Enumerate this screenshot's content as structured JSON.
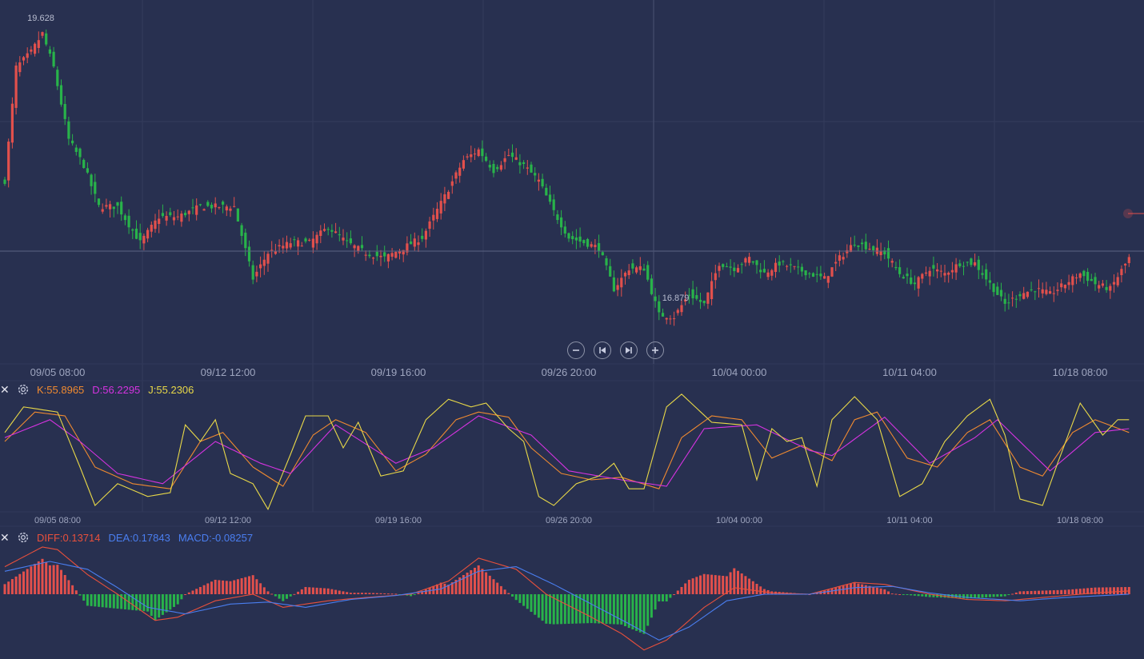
{
  "colors": {
    "background": "#283050",
    "grid": "#343c5c",
    "up": "#e2504c",
    "down": "#28b34a",
    "k": "#f08a30",
    "d": "#d533e0",
    "j": "#e8d848",
    "diff": "#e8503c",
    "dea": "#4a7ef0",
    "axis_text": "#9ea5bf"
  },
  "toolbar": {
    "zoom_out_icon": "minus-circle-icon",
    "prev_icon": "skip-back-icon",
    "next_icon": "skip-forward-icon",
    "zoom_in_icon": "plus-circle-icon"
  },
  "kdj_legend": {
    "close_icon": "close-icon",
    "settings_icon": "gear-icon",
    "k": "K:55.8965",
    "d": "D:56.2295",
    "j": "J:55.2306"
  },
  "macd_legend": {
    "close_icon": "close-icon",
    "settings_icon": "gear-icon",
    "diff": "DIFF:0.13714",
    "dea": "DEA:0.17843",
    "macd": "MACD:-0.08257"
  },
  "chart_data": [
    {
      "type": "candlestick",
      "name": "price",
      "x_labels": [
        "09/05 08:00",
        "09/12 12:00",
        "09/19 16:00",
        "09/26 20:00",
        "10/04 00:00",
        "10/11 04:00",
        "10/18 08:00"
      ],
      "max_label": "19.628",
      "min_label": "16.879",
      "ylim": [
        16.5,
        19.8
      ],
      "close_anchors": [
        [
          0,
          18.2
        ],
        [
          3,
          19.3
        ],
        [
          7,
          19.45
        ],
        [
          10,
          19.63
        ],
        [
          13,
          19.3
        ],
        [
          17,
          18.6
        ],
        [
          21,
          18.35
        ],
        [
          25,
          17.95
        ],
        [
          30,
          17.95
        ],
        [
          36,
          17.6
        ],
        [
          41,
          17.85
        ],
        [
          46,
          17.85
        ],
        [
          52,
          17.95
        ],
        [
          56,
          17.95
        ],
        [
          61,
          17.95
        ],
        [
          66,
          17.25
        ],
        [
          70,
          17.5
        ],
        [
          76,
          17.6
        ],
        [
          81,
          17.6
        ],
        [
          86,
          17.75
        ],
        [
          91,
          17.6
        ],
        [
          96,
          17.5
        ],
        [
          101,
          17.45
        ],
        [
          106,
          17.55
        ],
        [
          111,
          17.65
        ],
        [
          117,
          18.05
        ],
        [
          122,
          18.4
        ],
        [
          126,
          18.5
        ],
        [
          130,
          18.3
        ],
        [
          134,
          18.45
        ],
        [
          138,
          18.35
        ],
        [
          142,
          18.2
        ],
        [
          146,
          17.9
        ],
        [
          150,
          17.65
        ],
        [
          154,
          17.6
        ],
        [
          158,
          17.55
        ],
        [
          162,
          17.15
        ],
        [
          166,
          17.35
        ],
        [
          170,
          17.35
        ],
        [
          174,
          16.9
        ],
        [
          178,
          16.88
        ],
        [
          182,
          17.1
        ],
        [
          186,
          17.0
        ],
        [
          190,
          17.4
        ],
        [
          194,
          17.35
        ],
        [
          198,
          17.45
        ],
        [
          202,
          17.3
        ],
        [
          206,
          17.4
        ],
        [
          210,
          17.35
        ],
        [
          214,
          17.3
        ],
        [
          218,
          17.25
        ],
        [
          222,
          17.45
        ],
        [
          226,
          17.6
        ],
        [
          230,
          17.55
        ],
        [
          234,
          17.5
        ],
        [
          238,
          17.3
        ],
        [
          242,
          17.2
        ],
        [
          246,
          17.35
        ],
        [
          250,
          17.3
        ],
        [
          254,
          17.4
        ],
        [
          258,
          17.4
        ],
        [
          262,
          17.2
        ],
        [
          266,
          17.0
        ],
        [
          270,
          17.1
        ],
        [
          274,
          17.15
        ],
        [
          278,
          17.1
        ],
        [
          282,
          17.2
        ],
        [
          286,
          17.3
        ],
        [
          290,
          17.2
        ],
        [
          294,
          17.15
        ],
        [
          299,
          17.45
        ]
      ]
    },
    {
      "type": "line",
      "name": "KDJ",
      "series": [
        {
          "name": "K",
          "anchors": [
            [
              0,
              0.55
            ],
            [
              8,
              0.78
            ],
            [
              16,
              0.75
            ],
            [
              24,
              0.35
            ],
            [
              34,
              0.22
            ],
            [
              44,
              0.18
            ],
            [
              52,
              0.55
            ],
            [
              58,
              0.62
            ],
            [
              66,
              0.35
            ],
            [
              74,
              0.2
            ],
            [
              82,
              0.6
            ],
            [
              88,
              0.72
            ],
            [
              96,
              0.62
            ],
            [
              104,
              0.32
            ],
            [
              112,
              0.45
            ],
            [
              120,
              0.72
            ],
            [
              126,
              0.78
            ],
            [
              134,
              0.74
            ],
            [
              140,
              0.5
            ],
            [
              148,
              0.3
            ],
            [
              156,
              0.25
            ],
            [
              164,
              0.27
            ],
            [
              174,
              0.18
            ],
            [
              180,
              0.58
            ],
            [
              188,
              0.75
            ],
            [
              196,
              0.72
            ],
            [
              204,
              0.42
            ],
            [
              212,
              0.52
            ],
            [
              220,
              0.4
            ],
            [
              226,
              0.72
            ],
            [
              232,
              0.78
            ],
            [
              240,
              0.42
            ],
            [
              248,
              0.35
            ],
            [
              256,
              0.62
            ],
            [
              262,
              0.72
            ],
            [
              270,
              0.35
            ],
            [
              276,
              0.28
            ],
            [
              284,
              0.62
            ],
            [
              290,
              0.72
            ],
            [
              299,
              0.62
            ]
          ]
        },
        {
          "name": "D",
          "anchors": [
            [
              0,
              0.58
            ],
            [
              12,
              0.72
            ],
            [
              20,
              0.55
            ],
            [
              30,
              0.3
            ],
            [
              42,
              0.22
            ],
            [
              56,
              0.55
            ],
            [
              68,
              0.38
            ],
            [
              76,
              0.3
            ],
            [
              88,
              0.68
            ],
            [
              104,
              0.38
            ],
            [
              114,
              0.5
            ],
            [
              126,
              0.75
            ],
            [
              140,
              0.6
            ],
            [
              150,
              0.32
            ],
            [
              164,
              0.25
            ],
            [
              176,
              0.2
            ],
            [
              186,
              0.65
            ],
            [
              200,
              0.68
            ],
            [
              214,
              0.48
            ],
            [
              220,
              0.44
            ],
            [
              234,
              0.74
            ],
            [
              246,
              0.38
            ],
            [
              258,
              0.58
            ],
            [
              264,
              0.72
            ],
            [
              278,
              0.32
            ],
            [
              290,
              0.62
            ],
            [
              299,
              0.65
            ]
          ]
        },
        {
          "name": "J",
          "anchors": [
            [
              0,
              0.62
            ],
            [
              5,
              0.82
            ],
            [
              14,
              0.78
            ],
            [
              20,
              0.35
            ],
            [
              24,
              0.05
            ],
            [
              30,
              0.22
            ],
            [
              38,
              0.12
            ],
            [
              44,
              0.15
            ],
            [
              48,
              0.68
            ],
            [
              52,
              0.55
            ],
            [
              56,
              0.72
            ],
            [
              60,
              0.3
            ],
            [
              66,
              0.22
            ],
            [
              70,
              0.02
            ],
            [
              76,
              0.45
            ],
            [
              80,
              0.75
            ],
            [
              86,
              0.75
            ],
            [
              90,
              0.5
            ],
            [
              94,
              0.7
            ],
            [
              100,
              0.28
            ],
            [
              106,
              0.32
            ],
            [
              112,
              0.72
            ],
            [
              118,
              0.88
            ],
            [
              124,
              0.82
            ],
            [
              128,
              0.85
            ],
            [
              134,
              0.65
            ],
            [
              138,
              0.55
            ],
            [
              142,
              0.12
            ],
            [
              146,
              0.05
            ],
            [
              152,
              0.22
            ],
            [
              158,
              0.28
            ],
            [
              162,
              0.38
            ],
            [
              166,
              0.18
            ],
            [
              170,
              0.18
            ],
            [
              176,
              0.82
            ],
            [
              180,
              0.92
            ],
            [
              188,
              0.7
            ],
            [
              196,
              0.68
            ],
            [
              200,
              0.25
            ],
            [
              204,
              0.65
            ],
            [
              208,
              0.55
            ],
            [
              212,
              0.58
            ],
            [
              216,
              0.2
            ],
            [
              220,
              0.72
            ],
            [
              226,
              0.9
            ],
            [
              232,
              0.72
            ],
            [
              238,
              0.12
            ],
            [
              244,
              0.22
            ],
            [
              250,
              0.55
            ],
            [
              256,
              0.75
            ],
            [
              262,
              0.88
            ],
            [
              266,
              0.6
            ],
            [
              270,
              0.1
            ],
            [
              276,
              0.05
            ],
            [
              280,
              0.38
            ],
            [
              286,
              0.85
            ],
            [
              292,
              0.6
            ],
            [
              296,
              0.72
            ],
            [
              299,
              0.72
            ]
          ]
        }
      ]
    },
    {
      "type": "bar+line",
      "name": "MACD",
      "series": [
        {
          "name": "DIFF",
          "anchors": [
            [
              0,
              0.42
            ],
            [
              10,
              0.72
            ],
            [
              14,
              0.68
            ],
            [
              22,
              0.3
            ],
            [
              30,
              0.0
            ],
            [
              40,
              -0.4
            ],
            [
              46,
              -0.35
            ],
            [
              56,
              -0.1
            ],
            [
              66,
              0.0
            ],
            [
              74,
              -0.2
            ],
            [
              86,
              -0.1
            ],
            [
              96,
              -0.05
            ],
            [
              108,
              0.0
            ],
            [
              118,
              0.2
            ],
            [
              126,
              0.55
            ],
            [
              136,
              0.38
            ],
            [
              144,
              0.0
            ],
            [
              156,
              -0.35
            ],
            [
              164,
              -0.6
            ],
            [
              170,
              -0.85
            ],
            [
              176,
              -0.7
            ],
            [
              186,
              -0.2
            ],
            [
              194,
              0.1
            ],
            [
              204,
              0.02
            ],
            [
              214,
              0.0
            ],
            [
              226,
              0.18
            ],
            [
              234,
              0.15
            ],
            [
              246,
              0.0
            ],
            [
              256,
              -0.08
            ],
            [
              266,
              -0.1
            ],
            [
              276,
              -0.05
            ],
            [
              290,
              0.02
            ],
            [
              299,
              0.05
            ]
          ]
        },
        {
          "name": "DEA",
          "anchors": [
            [
              0,
              0.35
            ],
            [
              12,
              0.5
            ],
            [
              22,
              0.38
            ],
            [
              30,
              0.1
            ],
            [
              38,
              -0.2
            ],
            [
              48,
              -0.3
            ],
            [
              60,
              -0.15
            ],
            [
              70,
              -0.12
            ],
            [
              80,
              -0.2
            ],
            [
              92,
              -0.08
            ],
            [
              104,
              -0.02
            ],
            [
              116,
              0.08
            ],
            [
              126,
              0.35
            ],
            [
              136,
              0.42
            ],
            [
              146,
              0.15
            ],
            [
              156,
              -0.15
            ],
            [
              166,
              -0.45
            ],
            [
              174,
              -0.7
            ],
            [
              182,
              -0.5
            ],
            [
              192,
              -0.1
            ],
            [
              202,
              0.0
            ],
            [
              214,
              0.0
            ],
            [
              226,
              0.1
            ],
            [
              236,
              0.12
            ],
            [
              246,
              0.02
            ],
            [
              256,
              -0.05
            ],
            [
              270,
              -0.1
            ],
            [
              282,
              -0.05
            ],
            [
              299,
              0.0
            ]
          ]
        }
      ]
    }
  ]
}
